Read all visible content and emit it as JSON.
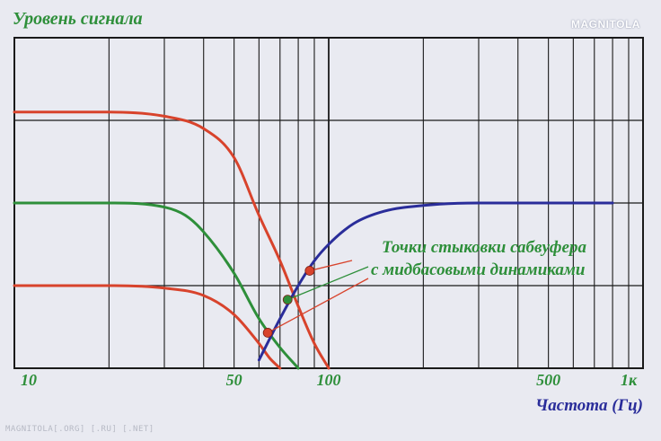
{
  "chart_data": {
    "type": "line",
    "title": "Уровень сигнала",
    "xlabel": "Частота (Гц)",
    "ylabel": "Уровень сигнала",
    "x_scale": "log",
    "xlim": [
      10,
      1000
    ],
    "x_ticks": [
      {
        "value": 10,
        "label": "10"
      },
      {
        "value": 50,
        "label": "50"
      },
      {
        "value": 100,
        "label": "100"
      },
      {
        "value": 500,
        "label": "500"
      },
      {
        "value": 1000,
        "label": "1к"
      }
    ],
    "ylim": [
      0,
      4
    ],
    "grid": true,
    "annotation": {
      "lines": [
        "Точки стыковки сабвуфера",
        "с мидбасовыми динамиками"
      ]
    },
    "series": [
      {
        "color": "#d8432c",
        "x": [
          10,
          20,
          30,
          40,
          50,
          60,
          70,
          80,
          90,
          100
        ],
        "y": [
          3.1,
          3.1,
          3.05,
          2.9,
          2.55,
          1.85,
          1.3,
          0.75,
          0.3,
          0
        ]
      },
      {
        "color": "#2e8f3a",
        "x": [
          10,
          20,
          30,
          35,
          40,
          50,
          60,
          70,
          80
        ],
        "y": [
          2.0,
          2.0,
          1.95,
          1.85,
          1.65,
          1.15,
          0.6,
          0.25,
          0
        ]
      },
      {
        "color": "#d8432c",
        "x": [
          10,
          20,
          30,
          40,
          50,
          60,
          65,
          70
        ],
        "y": [
          1.0,
          1.0,
          0.97,
          0.88,
          0.65,
          0.3,
          0.12,
          0
        ]
      },
      {
        "color": "#2a2d9a",
        "x": [
          60,
          70,
          80,
          90,
          100,
          120,
          150,
          200,
          300,
          500,
          800
        ],
        "y": [
          0.1,
          0.6,
          1.0,
          1.3,
          1.5,
          1.75,
          1.9,
          1.97,
          2.0,
          2.0,
          2.0
        ]
      }
    ],
    "crossover_points": [
      {
        "x": 87,
        "y": 1.18,
        "color": "#d8432c"
      },
      {
        "x": 74,
        "y": 0.83,
        "color": "#2e8f3a"
      },
      {
        "x": 64,
        "y": 0.43,
        "color": "#d8432c"
      }
    ]
  },
  "watermark": {
    "footer": "MAGNITOLA[.ORG] [.RU] [.NET]",
    "logo": "MAGNITOLA"
  },
  "colors": {
    "title": "#2e8f3a",
    "axis_label": "#2a2d9a",
    "tick_label": "#2e8f3a",
    "annotation": "#2e8f3a",
    "grid": "#1a1a1a"
  }
}
